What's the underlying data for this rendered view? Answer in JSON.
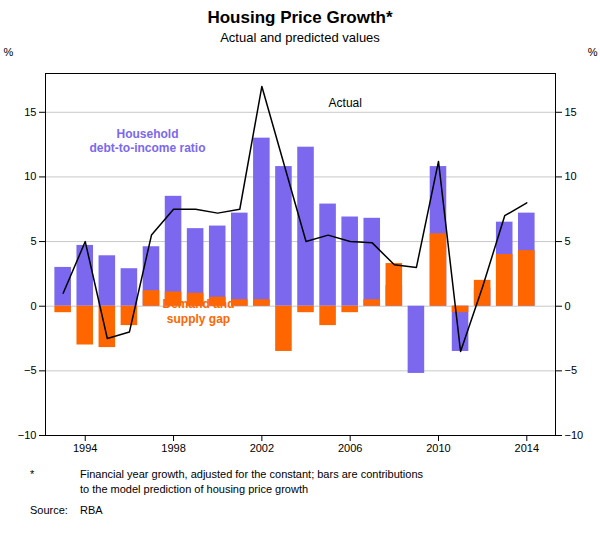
{
  "chart_data": {
    "type": "bar",
    "title": "Housing Price Growth*",
    "subtitle": "Actual and predicted values",
    "ylabel": "%",
    "y2label": "%",
    "x": [
      1993,
      1994,
      1995,
      1996,
      1997,
      1998,
      1999,
      2000,
      2001,
      2002,
      2003,
      2004,
      2005,
      2006,
      2007,
      2008,
      2009,
      2010,
      2011,
      2012,
      2013,
      2014
    ],
    "series": [
      {
        "name": "Household\ndebt-to-income ratio",
        "type": "bar",
        "color": "#7B68EE",
        "values": [
          3.0,
          4.7,
          3.9,
          2.9,
          4.6,
          8.5,
          6.0,
          6.2,
          7.2,
          13.0,
          10.8,
          12.3,
          7.9,
          6.9,
          6.8,
          1.6,
          -5.2,
          10.8,
          -3.5,
          1.4,
          6.5,
          7.2
        ]
      },
      {
        "name": "Demand and\nsupply gap",
        "type": "bar",
        "color": "#FF6600",
        "values": [
          -0.5,
          -3.0,
          -3.2,
          -1.5,
          1.2,
          1.1,
          1.0,
          0.7,
          0.5,
          0.5,
          -3.5,
          -0.5,
          -1.5,
          -0.5,
          0.5,
          3.3,
          0.0,
          5.6,
          -0.5,
          2.0,
          4.0,
          4.3
        ]
      },
      {
        "name": "Actual",
        "type": "line",
        "color": "#000000",
        "values": [
          1.0,
          5.0,
          -2.5,
          -2.0,
          5.5,
          7.5,
          7.5,
          7.2,
          7.5,
          17.0,
          11.0,
          5.0,
          5.5,
          5.0,
          4.9,
          3.2,
          3.0,
          11.2,
          -3.5,
          1.5,
          7.0,
          8.0
        ]
      }
    ],
    "xlim": [
      1992.2,
      2015.3
    ],
    "xticks": [
      1994,
      1998,
      2002,
      2006,
      2010,
      2014
    ],
    "ylim": [
      -10,
      18
    ],
    "yticks": [
      -10,
      -5,
      0,
      5,
      10,
      15
    ],
    "y2lim": [
      -10,
      18
    ],
    "y2ticks": [
      -10,
      -5,
      0,
      5,
      10,
      15
    ],
    "grid": true,
    "footnote_marker": "*",
    "footnote": [
      "Financial year growth, adjusted for the constant; bars are contributions",
      "to the model prediction of housing price growth"
    ],
    "source_label": "Source:",
    "source": "RBA"
  }
}
